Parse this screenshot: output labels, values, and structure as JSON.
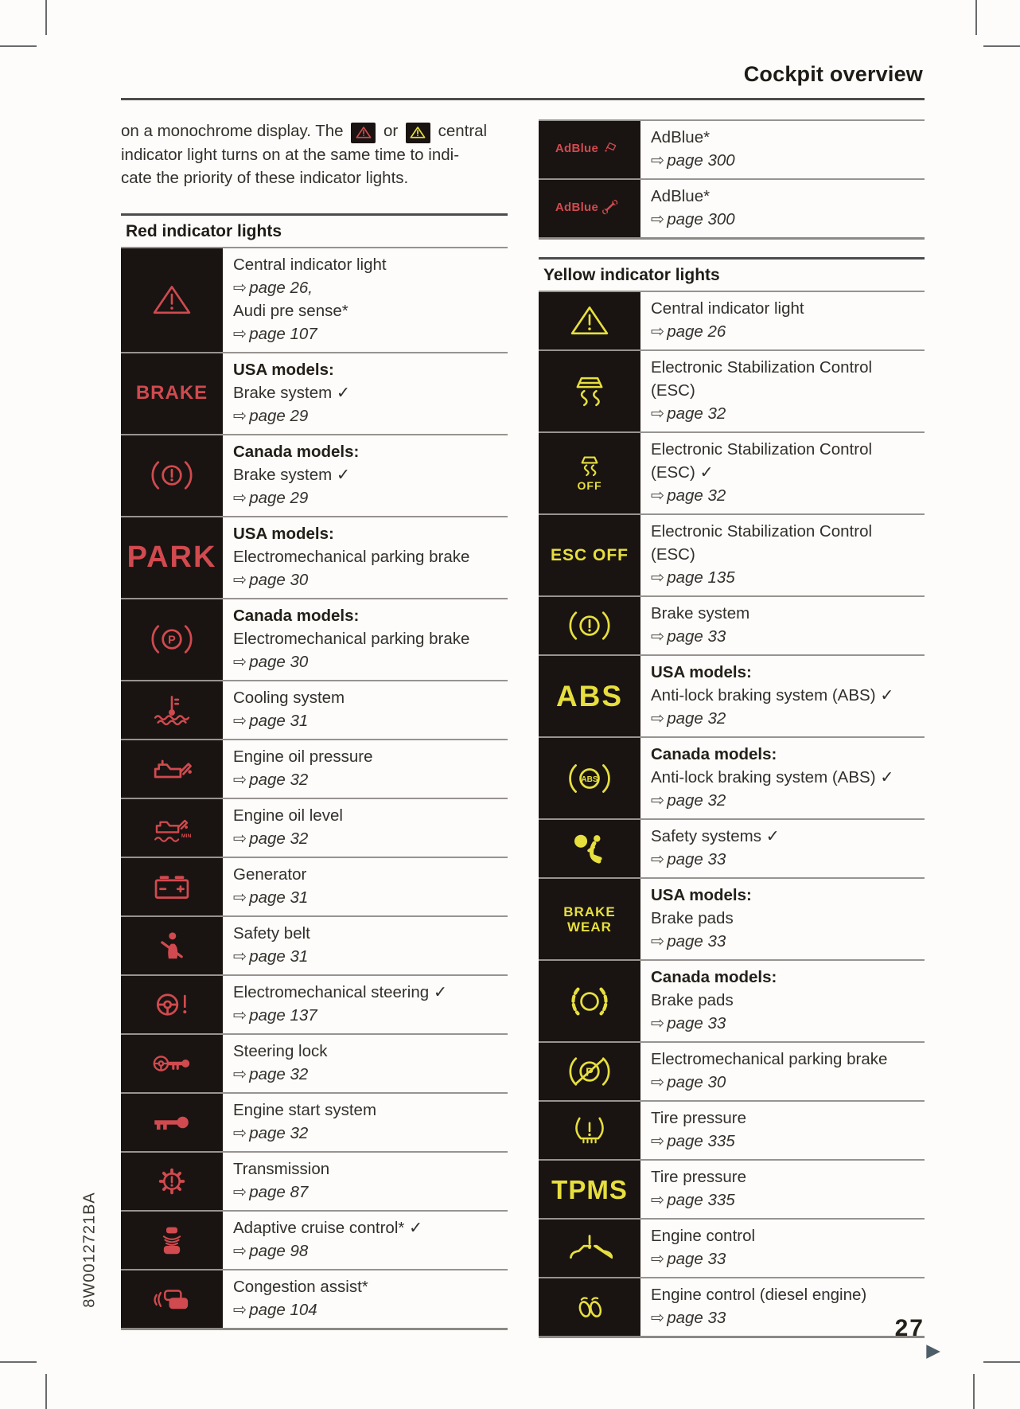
{
  "page": {
    "header_title": "Cockpit overview",
    "page_number": "27",
    "doc_code": "8W0012721BA",
    "continuation_glyph": "▶",
    "ref_arrow": "⇨"
  },
  "colors": {
    "red_indicator": "#d14a4f",
    "yellow_indicator": "#e7df3e",
    "indicator_background": "#191412"
  },
  "icon_labels": {
    "brake": "BRAKE",
    "park": "PARK",
    "abs": "ABS",
    "tpms": "TPMS",
    "esc_off": "ESC OFF",
    "off": "OFF",
    "brake_wear_line1": "BRAKE",
    "brake_wear_line2": "WEAR",
    "adblue": "AdBlue",
    "min": "MIN"
  },
  "intro": {
    "line1_before": "on a monochrome display. The",
    "line1_icon1": "central-warning",
    "line1_or": "or",
    "line1_icon2": "central-warning",
    "line1_after": "central",
    "line2": "indicator light turns on at the same time to indi-",
    "line3": "cate the priority of these indicator lights."
  },
  "left_column": {
    "section_title": "Red indicator lights",
    "color": "red",
    "rows": [
      {
        "icon": "central-warning",
        "lines": [
          [
            "t",
            "Central indicator light"
          ],
          [
            "r",
            "page 26,"
          ],
          [
            "t",
            "Audi pre sense*"
          ],
          [
            "r",
            "page 107"
          ]
        ]
      },
      {
        "icon": "brake-text",
        "lines": [
          [
            "b",
            "USA models:"
          ],
          [
            "t",
            "Brake system ✓"
          ],
          [
            "r",
            "page 29"
          ]
        ]
      },
      {
        "icon": "brake-circle",
        "lines": [
          [
            "b",
            "Canada models:"
          ],
          [
            "t",
            "Brake system ✓"
          ],
          [
            "r",
            "page 29"
          ]
        ]
      },
      {
        "icon": "park-text",
        "lines": [
          [
            "b",
            "USA models:"
          ],
          [
            "t",
            "Electromechanical parking brake"
          ],
          [
            "r",
            "page 30"
          ]
        ]
      },
      {
        "icon": "parking-circle",
        "lines": [
          [
            "b",
            "Canada models:"
          ],
          [
            "t",
            "Electromechanical parking brake"
          ],
          [
            "r",
            "page 30"
          ]
        ]
      },
      {
        "icon": "coolant",
        "lines": [
          [
            "t",
            "Cooling system"
          ],
          [
            "r",
            "page 31"
          ]
        ]
      },
      {
        "icon": "oil-pressure",
        "lines": [
          [
            "t",
            "Engine oil pressure"
          ],
          [
            "r",
            "page 32"
          ]
        ]
      },
      {
        "icon": "oil-level",
        "lines": [
          [
            "t",
            "Engine oil level"
          ],
          [
            "r",
            "page 32"
          ]
        ]
      },
      {
        "icon": "battery",
        "lines": [
          [
            "t",
            "Generator"
          ],
          [
            "r",
            "page 31"
          ]
        ]
      },
      {
        "icon": "seatbelt",
        "lines": [
          [
            "t",
            "Safety belt"
          ],
          [
            "r",
            "page 31"
          ]
        ]
      },
      {
        "icon": "steering-warning",
        "lines": [
          [
            "t",
            "Electromechanical steering ✓"
          ],
          [
            "r",
            "page 137"
          ]
        ]
      },
      {
        "icon": "steering-lock",
        "lines": [
          [
            "t",
            "Steering lock"
          ],
          [
            "r",
            "page 32"
          ]
        ]
      },
      {
        "icon": "key",
        "lines": [
          [
            "t",
            "Engine start system"
          ],
          [
            "r",
            "page 32"
          ]
        ]
      },
      {
        "icon": "transmission",
        "lines": [
          [
            "t",
            "Transmission"
          ],
          [
            "r",
            "page 87"
          ]
        ]
      },
      {
        "icon": "adaptive-cruise",
        "lines": [
          [
            "t",
            "Adaptive cruise control* ✓"
          ],
          [
            "r",
            "page 98"
          ]
        ]
      },
      {
        "icon": "congestion-assist",
        "lines": [
          [
            "t",
            "Congestion assist*"
          ],
          [
            "r",
            "page 104"
          ]
        ]
      }
    ]
  },
  "right_column": {
    "adblue_rows": [
      {
        "icon": "adblue-refill",
        "lines": [
          [
            "t",
            "AdBlue*"
          ],
          [
            "r",
            "page 300"
          ]
        ]
      },
      {
        "icon": "adblue-service",
        "lines": [
          [
            "t",
            "AdBlue*"
          ],
          [
            "r",
            "page 300"
          ]
        ]
      }
    ],
    "section_title": "Yellow indicator lights",
    "color": "yellow",
    "rows": [
      {
        "icon": "central-warning",
        "lines": [
          [
            "t",
            "Central indicator light"
          ],
          [
            "r",
            "page 26"
          ]
        ]
      },
      {
        "icon": "esc",
        "lines": [
          [
            "t",
            "Electronic Stabilization Control"
          ],
          [
            "t",
            "(ESC)"
          ],
          [
            "r",
            "page 32"
          ]
        ]
      },
      {
        "icon": "esc-off",
        "lines": [
          [
            "t",
            "Electronic Stabilization Control"
          ],
          [
            "t",
            "(ESC) ✓"
          ],
          [
            "r",
            "page 32"
          ]
        ]
      },
      {
        "icon": "esc-off-text",
        "lines": [
          [
            "t",
            "Electronic Stabilization Control"
          ],
          [
            "t",
            "(ESC)"
          ],
          [
            "r",
            "page 135"
          ]
        ]
      },
      {
        "icon": "brake-circle",
        "lines": [
          [
            "t",
            "Brake system"
          ],
          [
            "r",
            "page 33"
          ]
        ]
      },
      {
        "icon": "abs-text",
        "lines": [
          [
            "b",
            "USA models:"
          ],
          [
            "t",
            "Anti-lock braking system (ABS) ✓"
          ],
          [
            "r",
            "page 32"
          ]
        ]
      },
      {
        "icon": "abs-circle",
        "lines": [
          [
            "b",
            "Canada models:"
          ],
          [
            "t",
            "Anti-lock braking system (ABS) ✓"
          ],
          [
            "r",
            "page 32"
          ]
        ]
      },
      {
        "icon": "airbag",
        "lines": [
          [
            "t",
            "Safety systems ✓"
          ],
          [
            "r",
            "page 33"
          ]
        ]
      },
      {
        "icon": "brake-wear-text",
        "lines": [
          [
            "b",
            "USA models:"
          ],
          [
            "t",
            "Brake pads"
          ],
          [
            "r",
            "page 33"
          ]
        ]
      },
      {
        "icon": "brake-pads",
        "lines": [
          [
            "b",
            "Canada models:"
          ],
          [
            "t",
            "Brake pads"
          ],
          [
            "r",
            "page 33"
          ]
        ]
      },
      {
        "icon": "parking-fault",
        "lines": [
          [
            "t",
            "Electromechanical parking brake"
          ],
          [
            "r",
            "page 30"
          ]
        ]
      },
      {
        "icon": "tire-pressure",
        "lines": [
          [
            "t",
            "Tire pressure"
          ],
          [
            "r",
            "page 335"
          ]
        ]
      },
      {
        "icon": "tpms-text",
        "lines": [
          [
            "t",
            "Tire pressure"
          ],
          [
            "r",
            "page 335"
          ]
        ]
      },
      {
        "icon": "engine-control",
        "lines": [
          [
            "t",
            "Engine control"
          ],
          [
            "r",
            "page 33"
          ]
        ]
      },
      {
        "icon": "glow-plug",
        "lines": [
          [
            "t",
            "Engine control (diesel engine)"
          ],
          [
            "r",
            "page 33"
          ]
        ]
      }
    ]
  }
}
